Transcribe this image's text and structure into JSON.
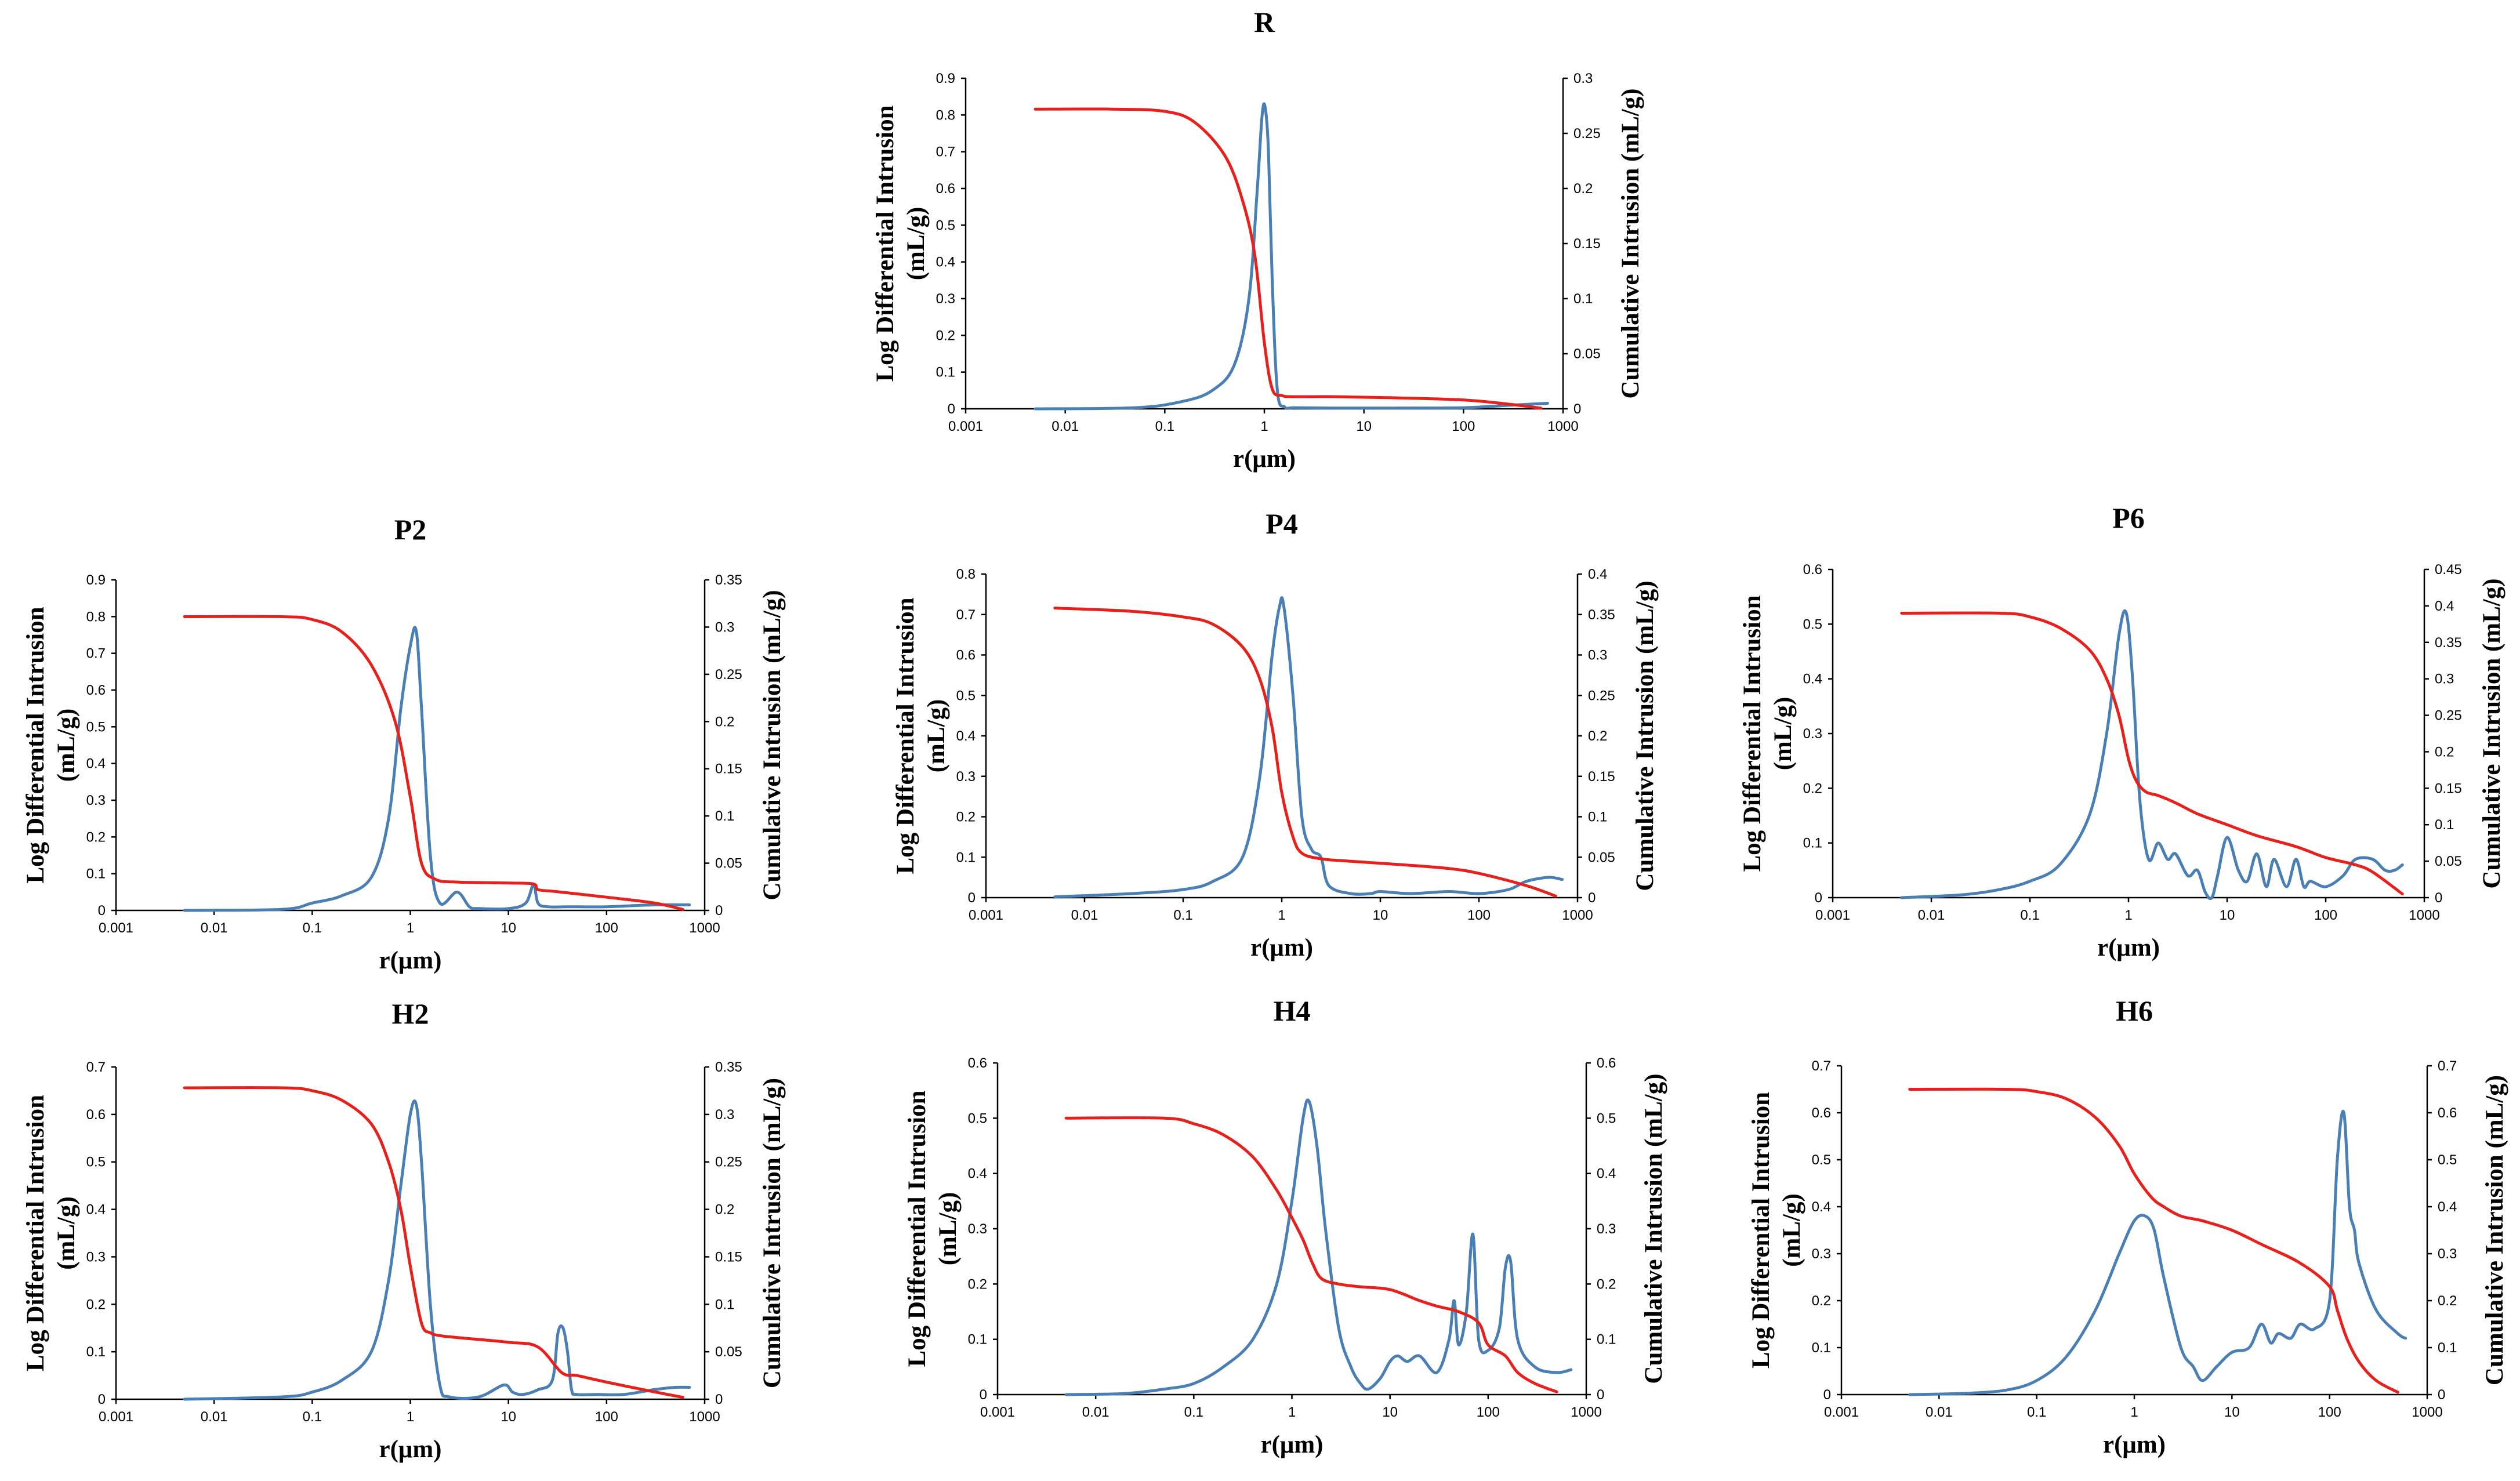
{
  "colors": {
    "log_differential": "#4a7fb5",
    "cumulative": "#e8201c",
    "axis": "#000000"
  },
  "chart_data": [
    {
      "type": "line",
      "title": "R",
      "xlabel": "r(μm)",
      "xscale": "log",
      "xlim": [
        0.001,
        1000
      ],
      "xticks": [
        "0.001",
        "0.01",
        "0.1",
        "1",
        "10",
        "100",
        "1000"
      ],
      "ylabel": [
        "Log Differential Intrusion",
        "(mL/g)"
      ],
      "ylim": [
        0,
        0.9
      ],
      "yticks": [
        "0",
        "0.1",
        "0.2",
        "0.3",
        "0.4",
        "0.5",
        "0.6",
        "0.7",
        "0.8",
        "0.9"
      ],
      "y2label": "Cumulative Intrusion (mL/g)",
      "y2lim": [
        0,
        0.3
      ],
      "y2ticks": [
        "0",
        "0.05",
        "0.1",
        "0.15",
        "0.2",
        "0.25",
        "0.3"
      ],
      "series": [
        {
          "name": "Log Differential Intrusion",
          "axis": "left",
          "x": [
            0.005,
            0.05,
            0.15,
            0.3,
            0.5,
            0.7,
            0.85,
            0.95,
            1.02,
            1.1,
            1.2,
            1.35,
            1.6,
            2,
            5,
            20,
            100,
            300,
            700
          ],
          "y": [
            0,
            0.003,
            0.02,
            0.05,
            0.12,
            0.3,
            0.6,
            0.8,
            0.82,
            0.7,
            0.35,
            0.05,
            0.005,
            0.003,
            0.002,
            0.002,
            0.003,
            0.01,
            0.015
          ]
        },
        {
          "name": "Cumulative Intrusion",
          "axis": "right",
          "x": [
            0.005,
            0.03,
            0.1,
            0.2,
            0.4,
            0.6,
            0.8,
            1.0,
            1.2,
            1.5,
            2,
            5,
            20,
            100,
            300,
            600
          ],
          "y": [
            0.272,
            0.272,
            0.27,
            0.26,
            0.23,
            0.19,
            0.14,
            0.06,
            0.018,
            0.012,
            0.011,
            0.011,
            0.01,
            0.008,
            0.004,
            0.0005
          ]
        }
      ]
    },
    {
      "type": "line",
      "title": "P2",
      "xlabel": "r(μm)",
      "xscale": "log",
      "xlim": [
        0.001,
        1000
      ],
      "xticks": [
        "0.001",
        "0.01",
        "0.1",
        "1",
        "10",
        "100",
        "1000"
      ],
      "ylabel": [
        "Log Differential Intrusion",
        "(mL/g)"
      ],
      "ylim": [
        0,
        0.9
      ],
      "yticks": [
        "0",
        "0.1",
        "0.2",
        "0.3",
        "0.4",
        "0.5",
        "0.6",
        "0.7",
        "0.8",
        "0.9"
      ],
      "y2label": "Cumulative Intrusion (mL/g)",
      "y2lim": [
        0,
        0.35
      ],
      "y2ticks": [
        "0",
        "0.05",
        "0.1",
        "0.15",
        "0.2",
        "0.25",
        "0.3",
        "0.35"
      ],
      "series": [
        {
          "name": "Log Differential Intrusion",
          "axis": "left",
          "x": [
            0.005,
            0.05,
            0.1,
            0.2,
            0.4,
            0.6,
            0.8,
            1.0,
            1.15,
            1.3,
            1.6,
            2.0,
            3.0,
            4.0,
            5,
            10,
            15,
            18,
            20,
            25,
            40,
            100,
            300,
            700
          ],
          "y": [
            0,
            0.003,
            0.02,
            0.04,
            0.09,
            0.25,
            0.55,
            0.72,
            0.76,
            0.55,
            0.15,
            0.02,
            0.05,
            0.01,
            0.005,
            0.005,
            0.02,
            0.07,
            0.02,
            0.01,
            0.01,
            0.01,
            0.015,
            0.015
          ]
        },
        {
          "name": "Cumulative Intrusion",
          "axis": "right",
          "x": [
            0.005,
            0.05,
            0.1,
            0.2,
            0.4,
            0.7,
            1.0,
            1.3,
            1.8,
            3,
            10,
            18,
            20,
            30,
            100,
            300,
            600
          ],
          "y": [
            0.311,
            0.311,
            0.308,
            0.295,
            0.26,
            0.2,
            0.12,
            0.05,
            0.033,
            0.03,
            0.029,
            0.028,
            0.022,
            0.02,
            0.014,
            0.008,
            0.001
          ]
        }
      ]
    },
    {
      "type": "line",
      "title": "P4",
      "xlabel": "r(μm)",
      "xscale": "log",
      "xlim": [
        0.001,
        1000
      ],
      "xticks": [
        "0.001",
        "0.01",
        "0.1",
        "1",
        "10",
        "100",
        "1000"
      ],
      "ylabel": [
        "Log Differential Intrusion",
        "(mL/g)"
      ],
      "ylim": [
        0,
        0.8
      ],
      "yticks": [
        "0",
        "0.1",
        "0.2",
        "0.3",
        "0.4",
        "0.5",
        "0.6",
        "0.7",
        "0.8"
      ],
      "y2label": "Cumulative Intrusion (mL/g)",
      "y2lim": [
        0,
        0.4
      ],
      "y2ticks": [
        "0",
        "0.05",
        "0.1",
        "0.15",
        "0.2",
        "0.25",
        "0.3",
        "0.35",
        "0.4"
      ],
      "series": [
        {
          "name": "Log Differential Intrusion",
          "axis": "left",
          "x": [
            0.005,
            0.03,
            0.1,
            0.2,
            0.4,
            0.6,
            0.8,
            0.95,
            1.05,
            1.3,
            1.6,
            2.0,
            2.5,
            3,
            5,
            8,
            10,
            20,
            50,
            100,
            200,
            300,
            500,
            700
          ],
          "y": [
            0.002,
            0.01,
            0.02,
            0.04,
            0.1,
            0.3,
            0.6,
            0.72,
            0.72,
            0.5,
            0.2,
            0.12,
            0.1,
            0.03,
            0.01,
            0.01,
            0.015,
            0.01,
            0.015,
            0.01,
            0.02,
            0.04,
            0.05,
            0.045
          ]
        },
        {
          "name": "Cumulative Intrusion",
          "axis": "right",
          "x": [
            0.005,
            0.03,
            0.1,
            0.2,
            0.4,
            0.6,
            0.8,
            1.0,
            1.3,
            1.6,
            2.5,
            5,
            20,
            50,
            100,
            300,
            600
          ],
          "y": [
            0.358,
            0.354,
            0.347,
            0.338,
            0.31,
            0.27,
            0.21,
            0.13,
            0.075,
            0.055,
            0.048,
            0.045,
            0.04,
            0.036,
            0.03,
            0.015,
            0.002
          ]
        }
      ]
    },
    {
      "type": "line",
      "title": "P6",
      "xlabel": "r(μm)",
      "xscale": "log",
      "xlim": [
        0.001,
        1000
      ],
      "xticks": [
        "0.001",
        "0.01",
        "0.1",
        "1",
        "10",
        "100",
        "1000"
      ],
      "ylabel": [
        "Log Differential Intrusion",
        "(mL/g)"
      ],
      "ylim": [
        0,
        0.6
      ],
      "yticks": [
        "0",
        "0.1",
        "0.2",
        "0.3",
        "0.4",
        "0.5",
        "0.6"
      ],
      "y2label": "Cumulative Intrusion (mL/g)",
      "y2lim": [
        0,
        0.45
      ],
      "y2ticks": [
        "0",
        "0.05",
        "0.1",
        "0.15",
        "0.2",
        "0.25",
        "0.3",
        "0.35",
        "0.4",
        "0.45"
      ],
      "series": [
        {
          "name": "Log Differential Intrusion",
          "axis": "left",
          "x": [
            0.005,
            0.02,
            0.05,
            0.1,
            0.2,
            0.4,
            0.6,
            0.8,
            0.95,
            1.1,
            1.3,
            1.6,
            2.0,
            2.5,
            3,
            4,
            5,
            6,
            7,
            8,
            10,
            13,
            16,
            20,
            25,
            30,
            40,
            50,
            60,
            70,
            100,
            150,
            200,
            300,
            400,
            500,
            600
          ],
          "y": [
            0,
            0.005,
            0.015,
            0.03,
            0.06,
            0.15,
            0.3,
            0.48,
            0.52,
            0.4,
            0.18,
            0.07,
            0.1,
            0.07,
            0.08,
            0.04,
            0.05,
            0.01,
            0.0,
            0.04,
            0.11,
            0.05,
            0.03,
            0.08,
            0.02,
            0.07,
            0.02,
            0.07,
            0.02,
            0.03,
            0.02,
            0.04,
            0.07,
            0.07,
            0.05,
            0.05,
            0.06
          ]
        },
        {
          "name": "Cumulative Intrusion",
          "axis": "right",
          "x": [
            0.005,
            0.05,
            0.1,
            0.2,
            0.4,
            0.6,
            0.8,
            1.0,
            1.2,
            1.5,
            2.0,
            3,
            5,
            10,
            20,
            50,
            100,
            200,
            300,
            600
          ],
          "y": [
            0.39,
            0.39,
            0.385,
            0.37,
            0.34,
            0.3,
            0.25,
            0.19,
            0.16,
            0.145,
            0.14,
            0.13,
            0.115,
            0.1,
            0.085,
            0.07,
            0.055,
            0.045,
            0.035,
            0.005
          ]
        }
      ]
    },
    {
      "type": "line",
      "title": "H2",
      "xlabel": "r(μm)",
      "xscale": "log",
      "xlim": [
        0.001,
        1000
      ],
      "xticks": [
        "0.001",
        "0.01",
        "0.1",
        "1",
        "10",
        "100",
        "1000"
      ],
      "ylabel": [
        "Log Differential Intrusion",
        "(mL/g)"
      ],
      "ylim": [
        0,
        0.7
      ],
      "yticks": [
        "0",
        "0.1",
        "0.2",
        "0.3",
        "0.4",
        "0.5",
        "0.6",
        "0.7"
      ],
      "y2label": "Cumulative Intrusion (mL/g)",
      "y2lim": [
        0,
        0.35
      ],
      "y2ticks": [
        "0",
        "0.05",
        "0.1",
        "0.15",
        "0.2",
        "0.25",
        "0.3",
        "0.35"
      ],
      "series": [
        {
          "name": "Log Differential Intrusion",
          "axis": "left",
          "x": [
            0.005,
            0.05,
            0.1,
            0.2,
            0.4,
            0.6,
            0.8,
            1.0,
            1.15,
            1.3,
            1.6,
            2.0,
            2.5,
            5,
            9,
            11,
            14,
            20,
            28,
            32,
            36,
            40,
            44,
            50,
            80,
            150,
            300,
            500,
            700
          ],
          "y": [
            0,
            0.005,
            0.015,
            0.04,
            0.1,
            0.25,
            0.45,
            0.6,
            0.62,
            0.5,
            0.2,
            0.03,
            0.005,
            0.005,
            0.03,
            0.015,
            0.01,
            0.02,
            0.04,
            0.14,
            0.15,
            0.1,
            0.02,
            0.01,
            0.01,
            0.01,
            0.02,
            0.025,
            0.025
          ]
        },
        {
          "name": "Cumulative Intrusion",
          "axis": "right",
          "x": [
            0.005,
            0.05,
            0.1,
            0.2,
            0.4,
            0.6,
            0.8,
            1.0,
            1.3,
            1.6,
            2.0,
            3,
            10,
            20,
            35,
            50,
            100,
            300,
            600
          ],
          "y": [
            0.328,
            0.328,
            0.325,
            0.315,
            0.29,
            0.25,
            0.2,
            0.14,
            0.08,
            0.07,
            0.067,
            0.065,
            0.06,
            0.055,
            0.028,
            0.025,
            0.018,
            0.008,
            0.002
          ]
        }
      ]
    },
    {
      "type": "line",
      "title": "H4",
      "xlabel": "r(μm)",
      "xscale": "log",
      "xlim": [
        0.001,
        1000
      ],
      "xticks": [
        "0.001",
        "0.01",
        "0.1",
        "1",
        "10",
        "100",
        "1000"
      ],
      "ylabel": [
        "Log Differential Intrusion",
        "(mL/g)"
      ],
      "ylim": [
        0,
        0.6
      ],
      "yticks": [
        "0",
        "0.1",
        "0.2",
        "0.3",
        "0.4",
        "0.5",
        "0.6"
      ],
      "y2label": "Cumulative Intrusion (mL/g)",
      "y2lim": [
        0,
        0.6
      ],
      "y2ticks": [
        "0",
        "0.1",
        "0.2",
        "0.3",
        "0.4",
        "0.5",
        "0.6"
      ],
      "series": [
        {
          "name": "Log Differential Intrusion",
          "axis": "left",
          "x": [
            0.005,
            0.02,
            0.05,
            0.1,
            0.2,
            0.4,
            0.7,
            1.0,
            1.3,
            1.5,
            1.8,
            2.2,
            3,
            4,
            5,
            6,
            8,
            10,
            12,
            15,
            20,
            30,
            40,
            45,
            50,
            60,
            70,
            80,
            100,
            130,
            150,
            170,
            200,
            300,
            500,
            700
          ],
          "y": [
            0,
            0.002,
            0.01,
            0.02,
            0.05,
            0.1,
            0.2,
            0.35,
            0.5,
            0.53,
            0.45,
            0.3,
            0.12,
            0.05,
            0.02,
            0.01,
            0.03,
            0.06,
            0.07,
            0.06,
            0.07,
            0.04,
            0.1,
            0.17,
            0.09,
            0.15,
            0.29,
            0.1,
            0.08,
            0.12,
            0.23,
            0.24,
            0.1,
            0.05,
            0.04,
            0.045
          ]
        },
        {
          "name": "Cumulative Intrusion",
          "axis": "right",
          "x": [
            0.005,
            0.05,
            0.1,
            0.2,
            0.4,
            0.7,
            1.0,
            1.3,
            1.6,
            2.0,
            3,
            5,
            10,
            20,
            30,
            50,
            80,
            100,
            150,
            200,
            300,
            500
          ],
          "y": [
            0.5,
            0.5,
            0.49,
            0.47,
            0.43,
            0.37,
            0.32,
            0.28,
            0.24,
            0.21,
            0.2,
            0.195,
            0.19,
            0.17,
            0.16,
            0.15,
            0.13,
            0.09,
            0.07,
            0.04,
            0.02,
            0.005
          ]
        }
      ]
    },
    {
      "type": "line",
      "title": "H6",
      "xlabel": "r(μm)",
      "xscale": "log",
      "xlim": [
        0.001,
        1000
      ],
      "xticks": [
        "0.001",
        "0.01",
        "0.1",
        "1",
        "10",
        "100",
        "1000"
      ],
      "ylabel": [
        "Log Differential Intrusion",
        "(mL/g)"
      ],
      "ylim": [
        0,
        0.7
      ],
      "yticks": [
        "0",
        "0.1",
        "0.2",
        "0.3",
        "0.4",
        "0.5",
        "0.6",
        "0.7"
      ],
      "y2label": "Cumulative Intrusion (mL/g)",
      "y2lim": [
        0,
        0.7
      ],
      "y2ticks": [
        "0",
        "0.1",
        "0.2",
        "0.3",
        "0.4",
        "0.5",
        "0.6",
        "0.7"
      ],
      "series": [
        {
          "name": "Log Differential Intrusion",
          "axis": "left",
          "x": [
            0.005,
            0.02,
            0.05,
            0.1,
            0.2,
            0.4,
            0.7,
            1.0,
            1.3,
            1.6,
            2.0,
            3,
            4,
            5,
            7,
            10,
            15,
            20,
            25,
            30,
            40,
            50,
            70,
            100,
            120,
            140,
            160,
            180,
            200,
            300,
            500,
            600
          ],
          "y": [
            0,
            0.003,
            0.01,
            0.03,
            0.08,
            0.18,
            0.3,
            0.37,
            0.38,
            0.35,
            0.25,
            0.1,
            0.06,
            0.03,
            0.06,
            0.09,
            0.1,
            0.15,
            0.11,
            0.13,
            0.12,
            0.15,
            0.14,
            0.2,
            0.5,
            0.6,
            0.4,
            0.35,
            0.28,
            0.18,
            0.13,
            0.12
          ]
        },
        {
          "name": "Cumulative Intrusion",
          "axis": "right",
          "x": [
            0.005,
            0.05,
            0.1,
            0.2,
            0.4,
            0.7,
            1.0,
            1.5,
            2.0,
            3,
            5,
            10,
            20,
            50,
            100,
            120,
            150,
            200,
            300,
            500
          ],
          "y": [
            0.65,
            0.65,
            0.645,
            0.63,
            0.59,
            0.53,
            0.47,
            0.42,
            0.4,
            0.38,
            0.37,
            0.35,
            0.32,
            0.28,
            0.23,
            0.18,
            0.12,
            0.07,
            0.03,
            0.005
          ]
        }
      ]
    }
  ]
}
